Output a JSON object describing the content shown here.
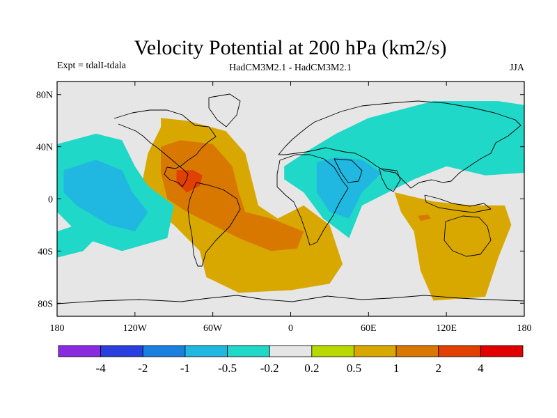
{
  "chart_data": {
    "type": "heatmap",
    "title": "Velocity Potential at 200 hPa (km2/s)",
    "subtitle_left": "Expt = tdalI-tdala",
    "subtitle_center": "HadCM3M2.1 - HadCM3M2.1",
    "subtitle_right": "JJA",
    "x_axis": {
      "range": [
        -180,
        180
      ],
      "ticks": [
        -180,
        -120,
        -60,
        0,
        60,
        120,
        180
      ],
      "tick_labels": [
        "180",
        "120W",
        "60W",
        "0",
        "60E",
        "120E",
        "180"
      ]
    },
    "y_axis": {
      "range": [
        -90,
        90
      ],
      "ticks": [
        80,
        40,
        0,
        -40,
        -80
      ],
      "tick_labels": [
        "80N",
        "40N",
        "0",
        "40S",
        "80S"
      ]
    },
    "background_color": "#e6e6e6",
    "colorbar": {
      "colors": [
        "#8a2be2",
        "#2a3ee0",
        "#1a80e0",
        "#20b8e0",
        "#20d8c8",
        "#e6e6e6",
        "#b8d800",
        "#d8a800",
        "#d87800",
        "#e04000",
        "#e00000"
      ],
      "levels": [
        -4,
        -2,
        -1,
        -0.5,
        -0.2,
        0.2,
        0.5,
        1,
        2,
        4
      ],
      "level_labels": [
        "-4",
        "-2",
        "-1",
        "-0.5",
        "-0.2",
        "0.2",
        "0.5",
        "1",
        "2",
        "4"
      ]
    },
    "regions": [
      {
        "name": "atlantic-positive",
        "value": 0.7,
        "polygon": [
          [
            -100,
            62
          ],
          [
            -80,
            60
          ],
          [
            -50,
            52
          ],
          [
            -35,
            35
          ],
          [
            -30,
            15
          ],
          [
            -25,
            -5
          ],
          [
            -10,
            -15
          ],
          [
            10,
            -5
          ],
          [
            30,
            -20
          ],
          [
            40,
            -50
          ],
          [
            30,
            -65
          ],
          [
            0,
            -70
          ],
          [
            -40,
            -72
          ],
          [
            -65,
            -60
          ],
          [
            -70,
            -40
          ],
          [
            -90,
            -20
          ],
          [
            -110,
            -5
          ],
          [
            -115,
            10
          ],
          [
            -110,
            35
          ],
          [
            -100,
            55
          ]
        ]
      },
      {
        "name": "americas-core",
        "value": 1.3,
        "polygon": [
          [
            -100,
            40
          ],
          [
            -85,
            45
          ],
          [
            -60,
            42
          ],
          [
            -45,
            25
          ],
          [
            -40,
            5
          ],
          [
            -35,
            -10
          ],
          [
            -15,
            -15
          ],
          [
            10,
            -25
          ],
          [
            5,
            -38
          ],
          [
            -15,
            -40
          ],
          [
            -40,
            -30
          ],
          [
            -60,
            -20
          ],
          [
            -80,
            -10
          ],
          [
            -95,
            0
          ],
          [
            -100,
            20
          ]
        ]
      },
      {
        "name": "caribbean-max",
        "value": 2.4,
        "polygon": [
          [
            -88,
            22
          ],
          [
            -75,
            22
          ],
          [
            -68,
            18
          ],
          [
            -70,
            10
          ],
          [
            -80,
            5
          ],
          [
            -88,
            12
          ]
        ]
      },
      {
        "name": "pacific-negative",
        "value": -0.35,
        "polygon": [
          [
            -180,
            42
          ],
          [
            -150,
            50
          ],
          [
            -130,
            45
          ],
          [
            -120,
            25
          ],
          [
            -110,
            10
          ],
          [
            -90,
            -5
          ],
          [
            -95,
            -30
          ],
          [
            -130,
            -40
          ],
          [
            -160,
            -30
          ],
          [
            -180,
            -10
          ]
        ]
      },
      {
        "name": "pacific-core",
        "value": -0.7,
        "polygon": [
          [
            -175,
            22
          ],
          [
            -150,
            30
          ],
          [
            -130,
            22
          ],
          [
            -122,
            5
          ],
          [
            -110,
            -10
          ],
          [
            -120,
            -25
          ],
          [
            -140,
            -20
          ],
          [
            -165,
            -5
          ],
          [
            -175,
            5
          ]
        ]
      },
      {
        "name": "eurasia-negative",
        "value": -0.35,
        "polygon": [
          [
            15,
            38
          ],
          [
            35,
            50
          ],
          [
            60,
            62
          ],
          [
            110,
            75
          ],
          [
            160,
            75
          ],
          [
            180,
            72
          ],
          [
            180,
            20
          ],
          [
            150,
            18
          ],
          [
            120,
            25
          ],
          [
            95,
            15
          ],
          [
            75,
            5
          ],
          [
            55,
            -5
          ],
          [
            45,
            -30
          ],
          [
            25,
            -15
          ],
          [
            10,
            5
          ],
          [
            -5,
            15
          ],
          [
            -5,
            25
          ]
        ]
      },
      {
        "name": "arabian-core",
        "value": -0.7,
        "polygon": [
          [
            20,
            28
          ],
          [
            35,
            32
          ],
          [
            55,
            30
          ],
          [
            70,
            20
          ],
          [
            55,
            5
          ],
          [
            45,
            -15
          ],
          [
            30,
            -10
          ],
          [
            20,
            5
          ]
        ]
      },
      {
        "name": "indian-positive",
        "value": 0.7,
        "polygon": [
          [
            80,
            5
          ],
          [
            110,
            -2
          ],
          [
            140,
            -5
          ],
          [
            165,
            -5
          ],
          [
            170,
            -20
          ],
          [
            160,
            -45
          ],
          [
            150,
            -75
          ],
          [
            110,
            -78
          ],
          [
            100,
            -55
          ],
          [
            95,
            -25
          ],
          [
            85,
            -10
          ]
        ]
      },
      {
        "name": "indian-spot",
        "value": 1.3,
        "polygon": [
          [
            98,
            -13
          ],
          [
            106,
            -12
          ],
          [
            108,
            -15
          ],
          [
            100,
            -17
          ]
        ]
      },
      {
        "name": "pacific-tail",
        "value": -0.35,
        "polygon": [
          [
            -180,
            -45
          ],
          [
            -160,
            -40
          ],
          [
            -150,
            -30
          ],
          [
            -165,
            -20
          ],
          [
            -180,
            -25
          ]
        ]
      }
    ]
  }
}
